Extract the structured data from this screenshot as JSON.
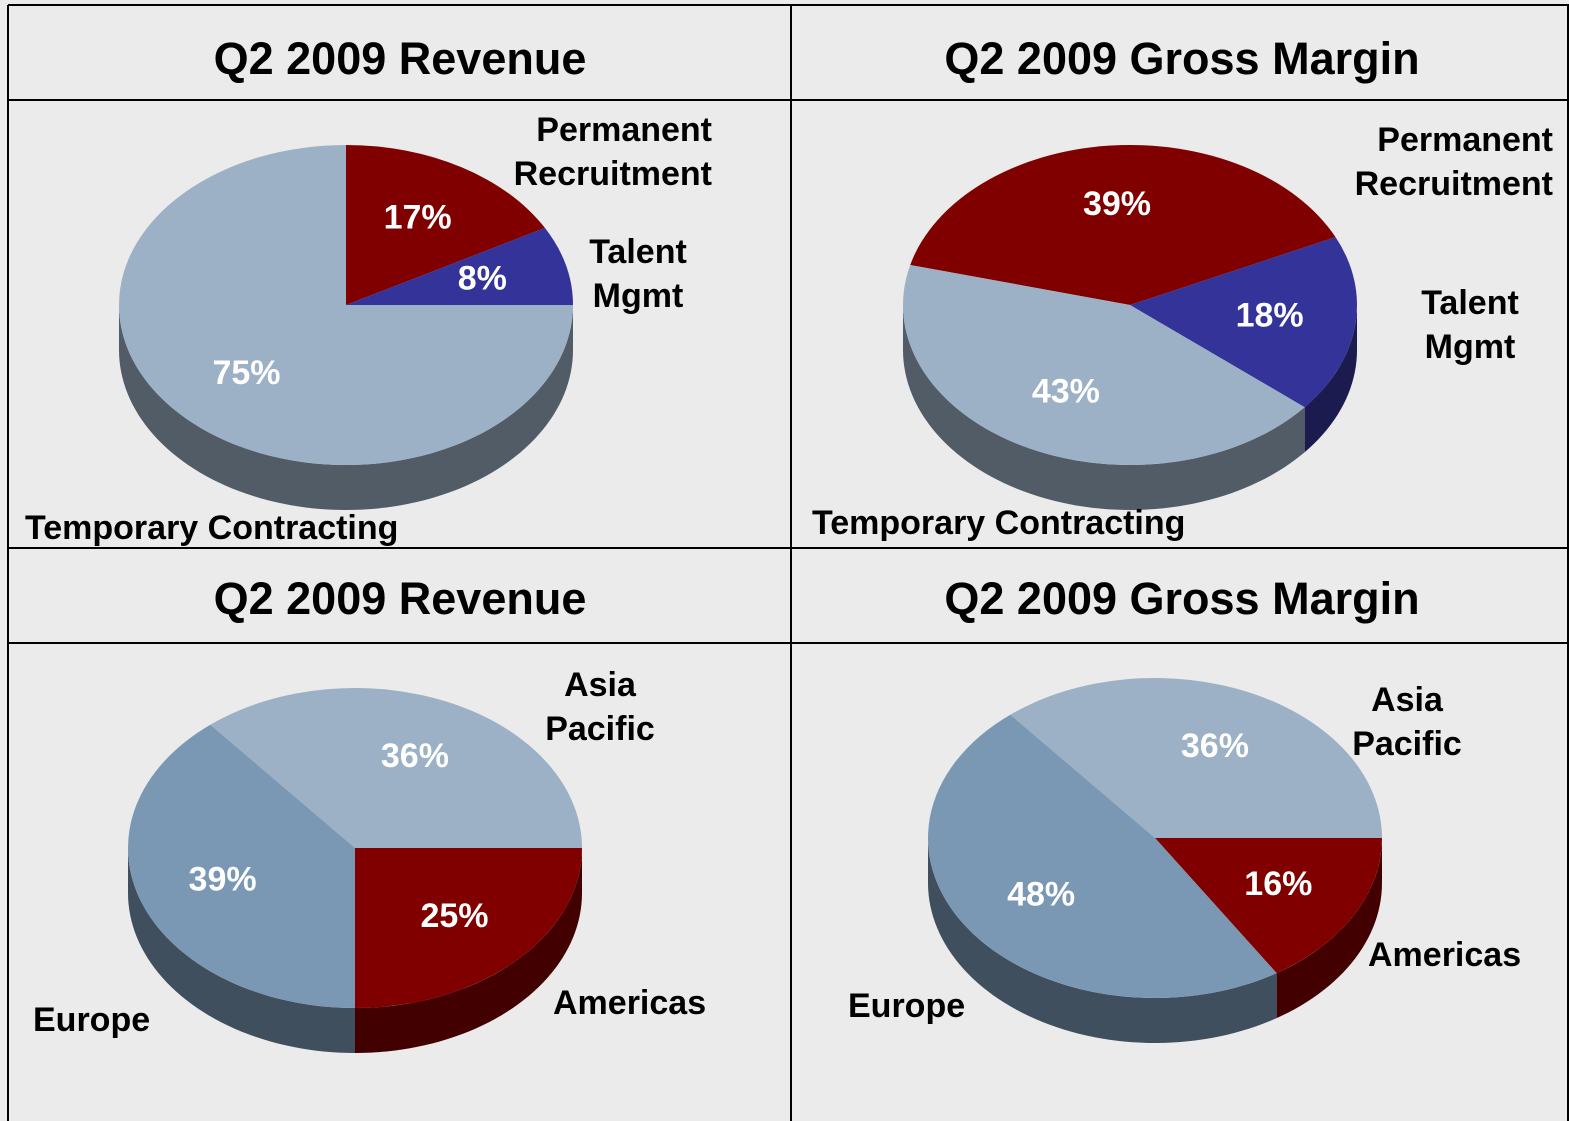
{
  "chart_data": [
    {
      "type": "pie",
      "title": "Q2 2009 Revenue",
      "categories": [
        "Permanent Recruitment",
        "Talent Mgmt",
        "Temporary Contracting"
      ],
      "values": [
        17,
        8,
        75
      ],
      "value_labels": [
        "17%",
        "8%",
        "75%"
      ],
      "colors": [
        "#800000",
        "#333399",
        "#9cb0c6"
      ]
    },
    {
      "type": "pie",
      "title": "Q2 2009 Gross Margin",
      "categories": [
        "Permanent Recruitment",
        "Talent Mgmt",
        "Temporary Contracting"
      ],
      "values": [
        39,
        18,
        43
      ],
      "value_labels": [
        "39%",
        "18%",
        "43%"
      ],
      "colors": [
        "#800000",
        "#333399",
        "#9cb0c6"
      ]
    },
    {
      "type": "pie",
      "title": "Q2 2009 Revenue",
      "categories": [
        "Asia Pacific",
        "Americas",
        "Europe"
      ],
      "values": [
        36,
        25,
        39
      ],
      "value_labels": [
        "36%",
        "25%",
        "39%"
      ],
      "colors": [
        "#9cb0c6",
        "#800000",
        "#7a98b4"
      ]
    },
    {
      "type": "pie",
      "title": "Q2 2009 Gross Margin",
      "categories": [
        "Asia Pacific",
        "Americas",
        "Europe"
      ],
      "values": [
        36,
        16,
        48
      ],
      "value_labels": [
        "36%",
        "16%",
        "48%"
      ],
      "colors": [
        "#9cb0c6",
        "#800000",
        "#7a98b4"
      ]
    }
  ]
}
